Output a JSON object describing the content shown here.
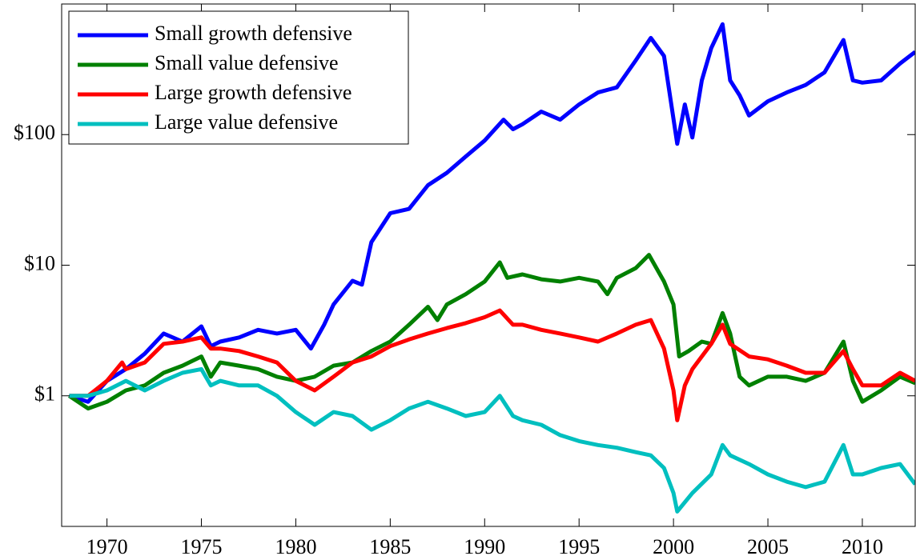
{
  "chart_data": {
    "type": "line",
    "log_scale": true,
    "grid": false,
    "legend": "upper left",
    "xlim": [
      1967.6,
      2012.8
    ],
    "xticks": [
      1970,
      1975,
      1980,
      1985,
      1990,
      1995,
      2000,
      2005,
      2010
    ],
    "ylim": [
      0.1,
      1000
    ],
    "yticks": [
      {
        "value": 1,
        "label": "$1"
      },
      {
        "value": 10,
        "label": "$10"
      },
      {
        "value": 100,
        "label": "$100"
      }
    ],
    "series": [
      {
        "name": "Small growth defensive",
        "color": "#0000ff",
        "x": [
          1968,
          1969,
          1970,
          1971,
          1972,
          1973,
          1974,
          1975,
          1975.5,
          1976,
          1977,
          1978,
          1979,
          1980,
          1980.8,
          1981.5,
          1982,
          1983,
          1983.5,
          1984,
          1985,
          1986,
          1987,
          1988,
          1989,
          1990,
          1991,
          1991.5,
          1992,
          1993,
          1994,
          1995,
          1996,
          1997,
          1998,
          1998.8,
          1999.5,
          2000.2,
          2000.6,
          2001,
          2001.5,
          2002,
          2002.6,
          2003,
          2003.5,
          2004,
          2005,
          2006,
          2007,
          2008,
          2009,
          2009.5,
          2010,
          2011,
          2012,
          2012.8
        ],
        "values": [
          1.0,
          0.9,
          1.3,
          1.6,
          2.1,
          3.0,
          2.6,
          3.4,
          2.4,
          2.6,
          2.8,
          3.2,
          3.0,
          3.2,
          2.3,
          3.5,
          5,
          7.6,
          7.1,
          15,
          25,
          27,
          41,
          51,
          68,
          90,
          130,
          110,
          120,
          150,
          130,
          170,
          210,
          230,
          370,
          550,
          400,
          85,
          170,
          95,
          260,
          460,
          700,
          260,
          200,
          140,
          180,
          210,
          240,
          300,
          530,
          260,
          250,
          260,
          350,
          430
        ]
      },
      {
        "name": "Small value defensive",
        "color": "#008000",
        "x": [
          1968,
          1969,
          1970,
          1971,
          1972,
          1973,
          1974,
          1975,
          1975.5,
          1976,
          1977,
          1978,
          1979,
          1980,
          1981,
          1982,
          1983,
          1984,
          1985,
          1986,
          1987,
          1987.5,
          1988,
          1989,
          1990,
          1990.8,
          1991.2,
          1992,
          1993,
          1994,
          1995,
          1996,
          1996.5,
          1997,
          1998,
          1998.7,
          1999.5,
          2000,
          2000.3,
          2000.8,
          2001.5,
          2002,
          2002.6,
          2003,
          2003.5,
          2004,
          2005,
          2006,
          2007,
          2008,
          2009,
          2009.5,
          2010,
          2011,
          2012,
          2012.8
        ],
        "values": [
          1.0,
          0.8,
          0.9,
          1.1,
          1.2,
          1.5,
          1.7,
          2.0,
          1.4,
          1.8,
          1.7,
          1.6,
          1.4,
          1.3,
          1.4,
          1.7,
          1.8,
          2.2,
          2.6,
          3.5,
          4.8,
          3.8,
          5,
          6,
          7.5,
          10.5,
          8,
          8.5,
          7.8,
          7.5,
          8,
          7.5,
          6,
          8,
          9.5,
          12,
          7.5,
          5,
          2,
          2.2,
          2.6,
          2.5,
          4.3,
          3,
          1.4,
          1.2,
          1.4,
          1.4,
          1.3,
          1.5,
          2.6,
          1.3,
          0.9,
          1.1,
          1.4,
          1.25
        ]
      },
      {
        "name": "Large growth defensive",
        "color": "#ff0000",
        "x": [
          1968,
          1969,
          1970,
          1970.8,
          1971,
          1972,
          1973,
          1974,
          1975,
          1975.5,
          1976,
          1977,
          1978,
          1979,
          1980,
          1981,
          1982,
          1983,
          1984,
          1985,
          1986,
          1987,
          1988,
          1989,
          1990,
          1990.8,
          1991.5,
          1992,
          1993,
          1994,
          1995,
          1996,
          1997,
          1998,
          1998.8,
          1999.5,
          2000,
          2000.2,
          2000.6,
          2001,
          2002,
          2002.6,
          2003,
          2004,
          2005,
          2006,
          2007,
          2008,
          2009,
          2009.5,
          2010,
          2011,
          2012,
          2012.8
        ],
        "values": [
          1.0,
          1.0,
          1.3,
          1.8,
          1.6,
          1.8,
          2.5,
          2.6,
          2.8,
          2.3,
          2.3,
          2.2,
          2.0,
          1.8,
          1.3,
          1.1,
          1.4,
          1.8,
          2,
          2.4,
          2.7,
          3,
          3.3,
          3.6,
          4,
          4.5,
          3.5,
          3.5,
          3.2,
          3,
          2.8,
          2.6,
          3,
          3.5,
          3.8,
          2.3,
          1.1,
          0.65,
          1.2,
          1.6,
          2.5,
          3.5,
          2.5,
          2,
          1.9,
          1.7,
          1.5,
          1.5,
          2.2,
          1.6,
          1.2,
          1.2,
          1.5,
          1.3
        ]
      },
      {
        "name": "Large value defensive",
        "color": "#00bfbf",
        "x": [
          1968,
          1969,
          1970,
          1971,
          1972,
          1973,
          1974,
          1975,
          1975.5,
          1976,
          1977,
          1978,
          1979,
          1980,
          1981,
          1982,
          1983,
          1984,
          1985,
          1986,
          1987,
          1988,
          1989,
          1990,
          1990.8,
          1991.5,
          1992,
          1993,
          1994,
          1995,
          1996,
          1997,
          1998,
          1998.8,
          1999.5,
          2000,
          2000.2,
          2001,
          2002,
          2002.6,
          2003,
          2004,
          2005,
          2006,
          2007,
          2008,
          2009,
          2009.5,
          2010,
          2011,
          2012,
          2012.8
        ],
        "values": [
          1.0,
          1.0,
          1.1,
          1.3,
          1.1,
          1.3,
          1.5,
          1.6,
          1.2,
          1.3,
          1.2,
          1.2,
          1.0,
          0.75,
          0.6,
          0.75,
          0.7,
          0.55,
          0.65,
          0.8,
          0.9,
          0.8,
          0.7,
          0.75,
          1.0,
          0.7,
          0.65,
          0.6,
          0.5,
          0.45,
          0.42,
          0.4,
          0.37,
          0.35,
          0.28,
          0.18,
          0.13,
          0.18,
          0.25,
          0.42,
          0.35,
          0.3,
          0.25,
          0.22,
          0.2,
          0.22,
          0.42,
          0.25,
          0.25,
          0.28,
          0.3,
          0.21
        ]
      }
    ]
  }
}
